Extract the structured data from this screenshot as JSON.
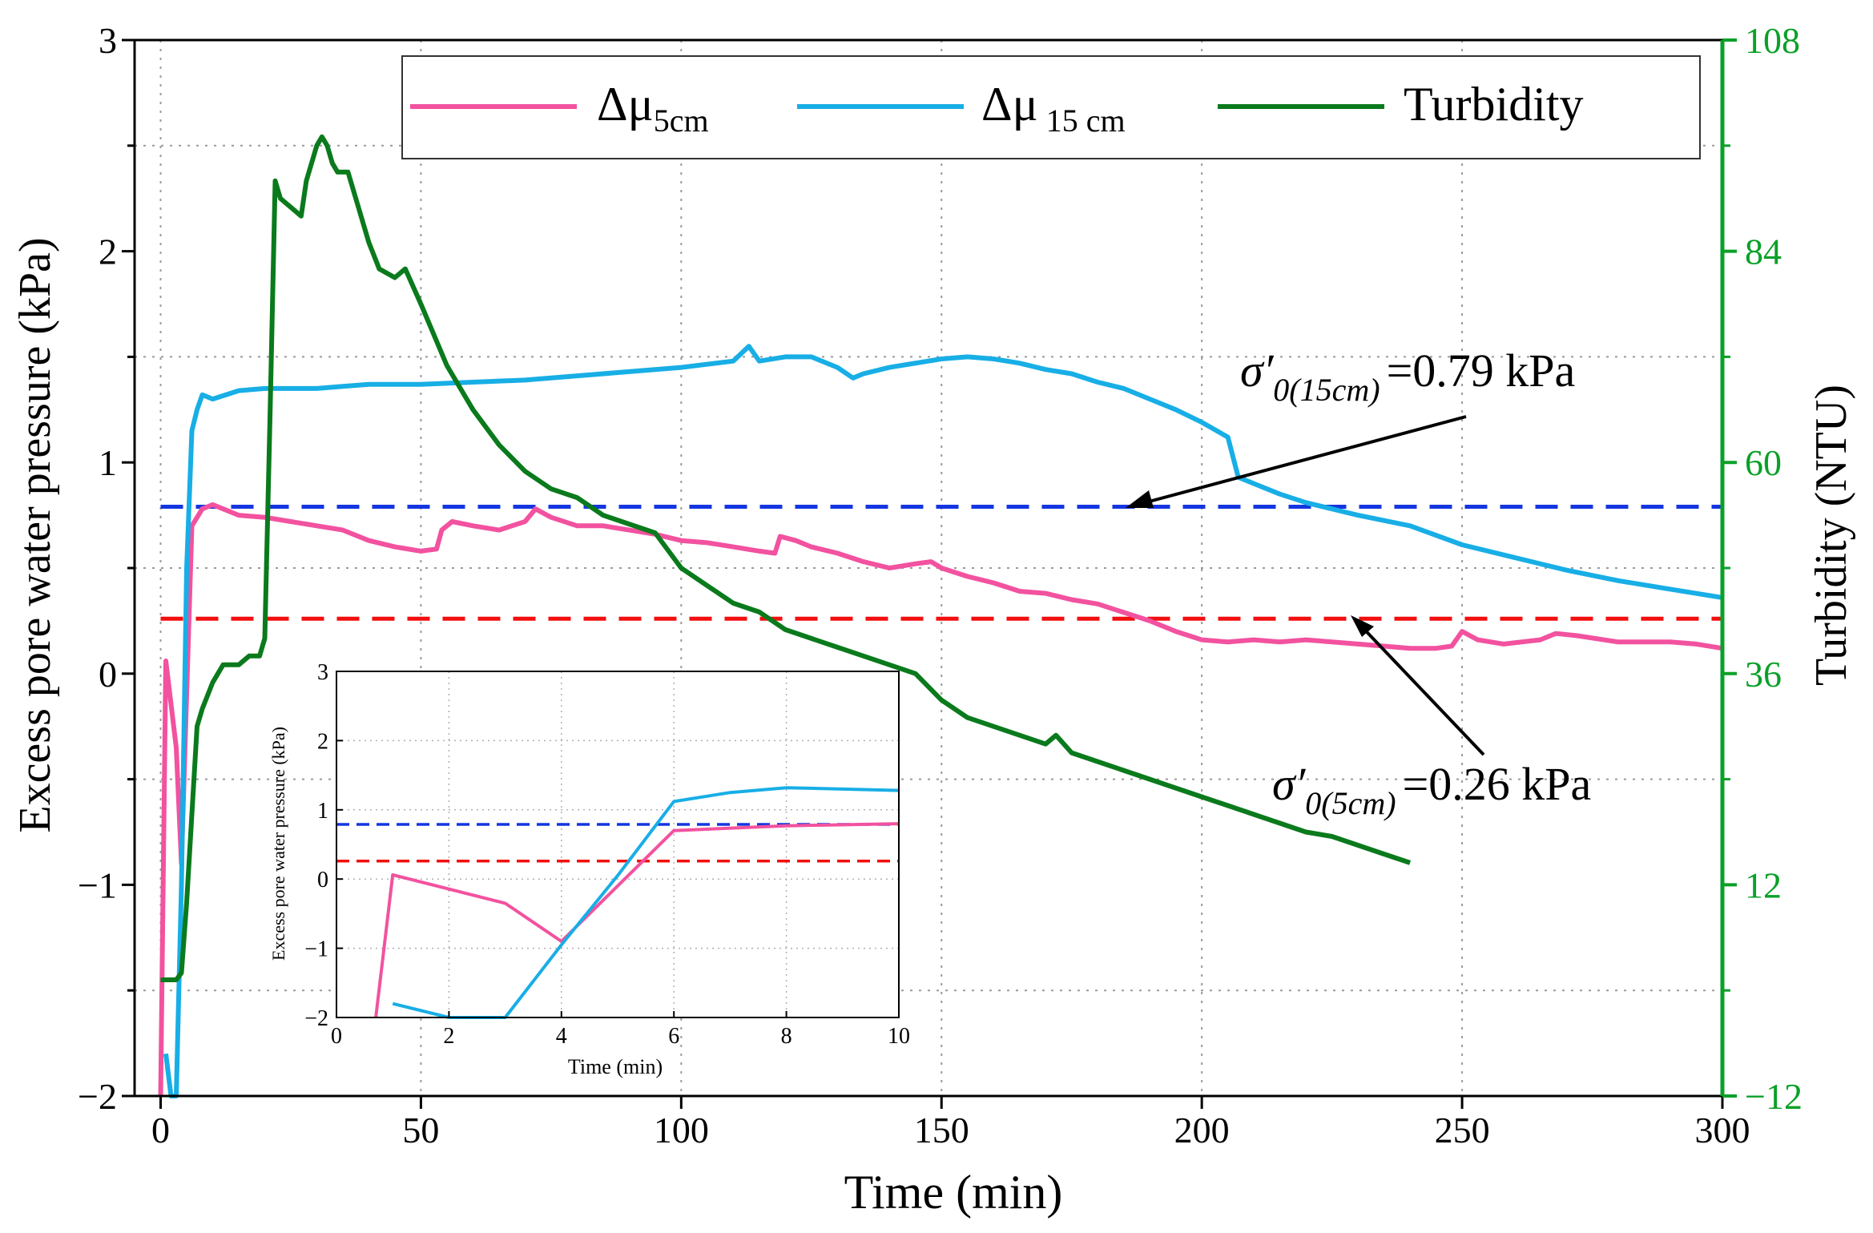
{
  "colors": {
    "pink": "#f2529f",
    "blue": "#18aee6",
    "green": "#0a7a1c",
    "navy_dash": "#1436e0",
    "red_dash": "#f20f0f",
    "green_axis": "#0aa028"
  },
  "legend": {
    "items": [
      {
        "key": "du5",
        "label_main": "Δμ",
        "label_sub": "5cm",
        "color": "#f2529f"
      },
      {
        "key": "du15",
        "label_main": "Δμ",
        "label_sub": "15 cm",
        "color": "#18aee6"
      },
      {
        "key": "turb",
        "label_main": "Turbidity",
        "label_sub": "",
        "color": "#0a7a1c"
      }
    ]
  },
  "annotations": {
    "a15": {
      "sigma": "σ′",
      "sub": "0(15cm)",
      "text": "=0.79 kPa",
      "value_kpa": 0.79
    },
    "a5": {
      "sigma": "σ′",
      "sub": "0(5cm)",
      "text": "=0.26 kPa",
      "value_kpa": 0.26
    }
  },
  "chart_data": [
    {
      "type": "line",
      "xlabel": "Time (min)",
      "ylabel": "Excess pore water pressure (kPa)",
      "y2label": "Turbidity (NTU)",
      "xlim": [
        -5,
        300
      ],
      "ylim": [
        -2,
        3
      ],
      "y2lim": [
        -12,
        108
      ],
      "xticks": [
        0,
        50,
        100,
        150,
        200,
        250,
        300
      ],
      "yticks": [
        -2,
        -1,
        0,
        1,
        2,
        3
      ],
      "yticks_minor": [
        -1.5,
        -0.5,
        0.5,
        1.5,
        2.5
      ],
      "y2ticks": [
        -12,
        12,
        36,
        60,
        84,
        108
      ],
      "ytick_labels": [
        "−2",
        "−1",
        "0",
        "1",
        "2",
        "3"
      ],
      "y2tick_labels": [
        "−12",
        "12",
        "36",
        "60",
        "84",
        "108"
      ],
      "grid": true,
      "legend_position": "top",
      "hlines": [
        {
          "y": 0.79,
          "style": "dashed",
          "color": "#1436e0"
        },
        {
          "y": 0.26,
          "style": "dashed",
          "color": "#f20f0f"
        }
      ],
      "series": [
        {
          "name": "Δμ5cm",
          "axis": "left",
          "color": "#f2529f",
          "points": [
            [
              0,
              -2
            ],
            [
              1,
              0.06
            ],
            [
              3,
              -0.35
            ],
            [
              4,
              -0.9
            ],
            [
              6,
              0.7
            ],
            [
              8,
              0.78
            ],
            [
              10,
              0.8
            ],
            [
              12,
              0.78
            ],
            [
              15,
              0.75
            ],
            [
              20,
              0.74
            ],
            [
              25,
              0.72
            ],
            [
              30,
              0.7
            ],
            [
              35,
              0.68
            ],
            [
              40,
              0.63
            ],
            [
              45,
              0.6
            ],
            [
              50,
              0.58
            ],
            [
              53,
              0.59
            ],
            [
              54,
              0.68
            ],
            [
              56,
              0.72
            ],
            [
              60,
              0.7
            ],
            [
              65,
              0.68
            ],
            [
              70,
              0.72
            ],
            [
              72,
              0.78
            ],
            [
              75,
              0.74
            ],
            [
              80,
              0.7
            ],
            [
              85,
              0.7
            ],
            [
              90,
              0.68
            ],
            [
              95,
              0.66
            ],
            [
              100,
              0.63
            ],
            [
              105,
              0.62
            ],
            [
              110,
              0.6
            ],
            [
              115,
              0.58
            ],
            [
              118,
              0.57
            ],
            [
              119,
              0.65
            ],
            [
              122,
              0.63
            ],
            [
              125,
              0.6
            ],
            [
              130,
              0.57
            ],
            [
              135,
              0.53
            ],
            [
              140,
              0.5
            ],
            [
              145,
              0.52
            ],
            [
              148,
              0.53
            ],
            [
              150,
              0.5
            ],
            [
              155,
              0.46
            ],
            [
              160,
              0.43
            ],
            [
              165,
              0.39
            ],
            [
              170,
              0.38
            ],
            [
              175,
              0.35
            ],
            [
              180,
              0.33
            ],
            [
              185,
              0.29
            ],
            [
              190,
              0.25
            ],
            [
              195,
              0.2
            ],
            [
              200,
              0.16
            ],
            [
              205,
              0.15
            ],
            [
              210,
              0.16
            ],
            [
              215,
              0.15
            ],
            [
              220,
              0.16
            ],
            [
              225,
              0.15
            ],
            [
              230,
              0.14
            ],
            [
              235,
              0.13
            ],
            [
              240,
              0.12
            ],
            [
              245,
              0.12
            ],
            [
              248,
              0.13
            ],
            [
              250,
              0.2
            ],
            [
              253,
              0.16
            ],
            [
              258,
              0.14
            ],
            [
              265,
              0.16
            ],
            [
              268,
              0.19
            ],
            [
              272,
              0.18
            ],
            [
              280,
              0.15
            ],
            [
              290,
              0.15
            ],
            [
              295,
              0.14
            ],
            [
              300,
              0.12
            ]
          ]
        },
        {
          "name": "Δμ 15 cm",
          "axis": "left",
          "color": "#18aee6",
          "points": [
            [
              1,
              -1.8
            ],
            [
              2,
              -2
            ],
            [
              3,
              -2
            ],
            [
              4,
              -1
            ],
            [
              5,
              0.5
            ],
            [
              6,
              1.15
            ],
            [
              7,
              1.25
            ],
            [
              8,
              1.32
            ],
            [
              10,
              1.3
            ],
            [
              15,
              1.34
            ],
            [
              20,
              1.35
            ],
            [
              25,
              1.35
            ],
            [
              30,
              1.35
            ],
            [
              35,
              1.36
            ],
            [
              40,
              1.37
            ],
            [
              50,
              1.37
            ],
            [
              60,
              1.38
            ],
            [
              70,
              1.39
            ],
            [
              80,
              1.41
            ],
            [
              90,
              1.43
            ],
            [
              100,
              1.45
            ],
            [
              110,
              1.48
            ],
            [
              113,
              1.55
            ],
            [
              115,
              1.48
            ],
            [
              120,
              1.5
            ],
            [
              125,
              1.5
            ],
            [
              130,
              1.45
            ],
            [
              133,
              1.4
            ],
            [
              135,
              1.42
            ],
            [
              140,
              1.45
            ],
            [
              150,
              1.49
            ],
            [
              155,
              1.5
            ],
            [
              160,
              1.49
            ],
            [
              165,
              1.47
            ],
            [
              170,
              1.44
            ],
            [
              175,
              1.42
            ],
            [
              180,
              1.38
            ],
            [
              185,
              1.35
            ],
            [
              190,
              1.3
            ],
            [
              195,
              1.25
            ],
            [
              200,
              1.19
            ],
            [
              205,
              1.12
            ],
            [
              207,
              0.93
            ],
            [
              210,
              0.9
            ],
            [
              215,
              0.85
            ],
            [
              220,
              0.81
            ],
            [
              225,
              0.78
            ],
            [
              230,
              0.75
            ],
            [
              240,
              0.7
            ],
            [
              250,
              0.61
            ],
            [
              260,
              0.55
            ],
            [
              270,
              0.49
            ],
            [
              280,
              0.44
            ],
            [
              290,
              0.4
            ],
            [
              300,
              0.36
            ]
          ]
        },
        {
          "name": "Turbidity",
          "axis": "right",
          "color": "#0a7a1c",
          "points": [
            [
              0,
              1.2
            ],
            [
              3,
              1.2
            ],
            [
              4,
              2
            ],
            [
              5,
              10
            ],
            [
              6,
              20
            ],
            [
              7,
              30
            ],
            [
              8,
              32
            ],
            [
              10,
              35
            ],
            [
              12,
              37
            ],
            [
              15,
              37
            ],
            [
              17,
              38
            ],
            [
              19,
              38
            ],
            [
              20,
              40
            ],
            [
              21,
              65
            ],
            [
              22,
              92
            ],
            [
              23,
              90
            ],
            [
              25,
              89
            ],
            [
              27,
              88
            ],
            [
              28,
              92
            ],
            [
              30,
              96
            ],
            [
              31,
              97
            ],
            [
              32,
              96
            ],
            [
              33,
              94
            ],
            [
              34,
              93
            ],
            [
              36,
              93
            ],
            [
              38,
              89
            ],
            [
              40,
              85
            ],
            [
              42,
              82
            ],
            [
              45,
              81
            ],
            [
              47,
              82
            ],
            [
              50,
              78
            ],
            [
              55,
              71
            ],
            [
              60,
              66
            ],
            [
              65,
              62
            ],
            [
              70,
              59
            ],
            [
              75,
              57
            ],
            [
              80,
              56
            ],
            [
              85,
              54
            ],
            [
              90,
              53
            ],
            [
              95,
              52
            ],
            [
              100,
              48
            ],
            [
              105,
              46
            ],
            [
              110,
              44
            ],
            [
              115,
              43
            ],
            [
              120,
              41
            ],
            [
              125,
              40
            ],
            [
              130,
              39
            ],
            [
              135,
              38
            ],
            [
              140,
              37
            ],
            [
              145,
              36
            ],
            [
              150,
              33
            ],
            [
              155,
              31
            ],
            [
              160,
              30
            ],
            [
              165,
              29
            ],
            [
              170,
              28
            ],
            [
              172,
              29
            ],
            [
              175,
              27
            ],
            [
              180,
              26
            ],
            [
              185,
              25
            ],
            [
              190,
              24
            ],
            [
              195,
              23
            ],
            [
              200,
              22
            ],
            [
              205,
              21
            ],
            [
              210,
              20
            ],
            [
              215,
              19
            ],
            [
              220,
              18
            ],
            [
              225,
              17.5
            ],
            [
              230,
              16.5
            ],
            [
              235,
              15.5
            ],
            [
              240,
              14.5
            ]
          ]
        }
      ]
    },
    {
      "type": "line",
      "inset": true,
      "xlabel": "Time (min)",
      "ylabel": "Excess pore water pressure (kPa)",
      "xlim": [
        0,
        10
      ],
      "ylim": [
        -2,
        3
      ],
      "xticks": [
        0,
        2,
        4,
        6,
        8,
        10
      ],
      "yticks": [
        -2,
        -1,
        0,
        1,
        2,
        3
      ],
      "ytick_labels": [
        "−2",
        "−1",
        "0",
        "1",
        "2",
        "3"
      ],
      "grid": true,
      "hlines": [
        {
          "y": 0.79,
          "style": "dashed",
          "color": "#1436e0"
        },
        {
          "y": 0.26,
          "style": "dashed",
          "color": "#f20f0f"
        }
      ],
      "series": [
        {
          "name": "Δμ5cm",
          "color": "#f2529f",
          "points": [
            [
              0.7,
              -2
            ],
            [
              1,
              0.06
            ],
            [
              3,
              -0.35
            ],
            [
              4,
              -0.9
            ],
            [
              6,
              0.7
            ],
            [
              8,
              0.77
            ],
            [
              10,
              0.8
            ]
          ]
        },
        {
          "name": "Δμ 15 cm",
          "color": "#18aee6",
          "points": [
            [
              1,
              -1.8
            ],
            [
              2,
              -2
            ],
            [
              3,
              -2
            ],
            [
              4,
              -0.95
            ],
            [
              5,
              0.05
            ],
            [
              6,
              1.12
            ],
            [
              7,
              1.25
            ],
            [
              8,
              1.32
            ],
            [
              9,
              1.3
            ],
            [
              10,
              1.28
            ]
          ]
        }
      ]
    }
  ]
}
